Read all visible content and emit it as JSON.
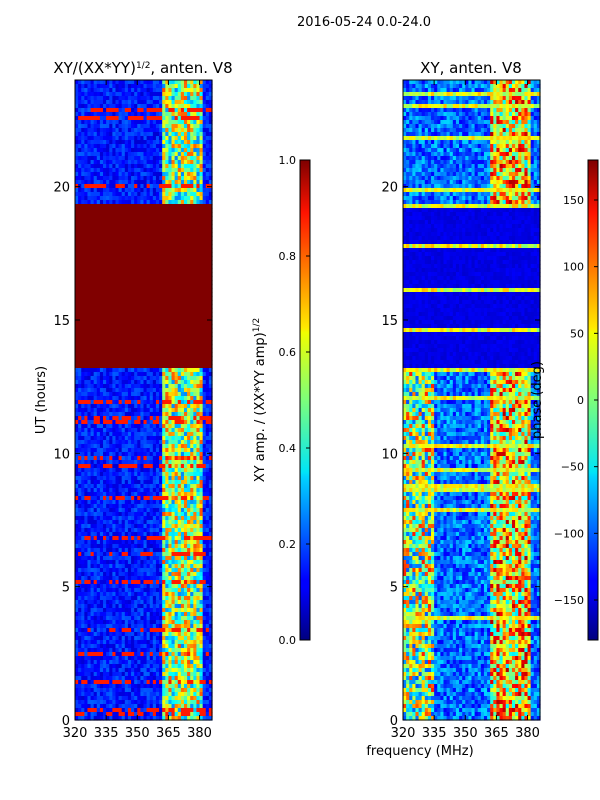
{
  "figure": {
    "suptitle": "2016-05-24 0.0-24.0",
    "xlabel_shared": "frequency (MHz)"
  },
  "chart_data": [
    {
      "type": "heatmap",
      "title": "XY/(XX*YY)",
      "title_sup": "1/2",
      "title_suffix": ", anten. V8",
      "xlabel": "frequency (MHz)",
      "ylabel": "UT (hours)",
      "xlim": [
        320,
        386
      ],
      "ylim": [
        0,
        24
      ],
      "xticks": [
        320,
        335,
        350,
        365,
        380
      ],
      "yticks": [
        0,
        5,
        10,
        15,
        20
      ],
      "colorbar": {
        "label": "XY amp. / (XX*YY amp)",
        "label_sup": "1/2",
        "range": [
          0.0,
          1.0
        ],
        "ticks": [
          "0.0",
          "0.2",
          "0.4",
          "0.6",
          "0.8",
          "1.0"
        ],
        "tick_values": [
          0.0,
          0.2,
          0.4,
          0.6,
          0.8,
          1.0
        ],
        "colormap": "jet"
      },
      "saturated_band_hours": [
        13.2,
        19.3
      ],
      "active_band_mhz": [
        362,
        381
      ]
    },
    {
      "type": "heatmap",
      "title": "XY, anten. V8",
      "xlabel": "frequency (MHz)",
      "ylabel": "",
      "xlim": [
        320,
        386
      ],
      "ylim": [
        0,
        24
      ],
      "xticks": [
        320,
        335,
        350,
        365,
        380
      ],
      "yticks": [
        0,
        5,
        10,
        15,
        20
      ],
      "colorbar": {
        "label": "phase (deg)",
        "range": [
          -180,
          180
        ],
        "ticks": [
          "150",
          "100",
          "50",
          "0",
          "−50",
          "−100",
          "−150"
        ],
        "tick_values": [
          150,
          100,
          50,
          0,
          -50,
          -100,
          -150
        ],
        "colormap": "jet"
      },
      "low_band_hours": [
        13.2,
        19.3
      ],
      "active_band_mhz": [
        362,
        381
      ]
    }
  ]
}
